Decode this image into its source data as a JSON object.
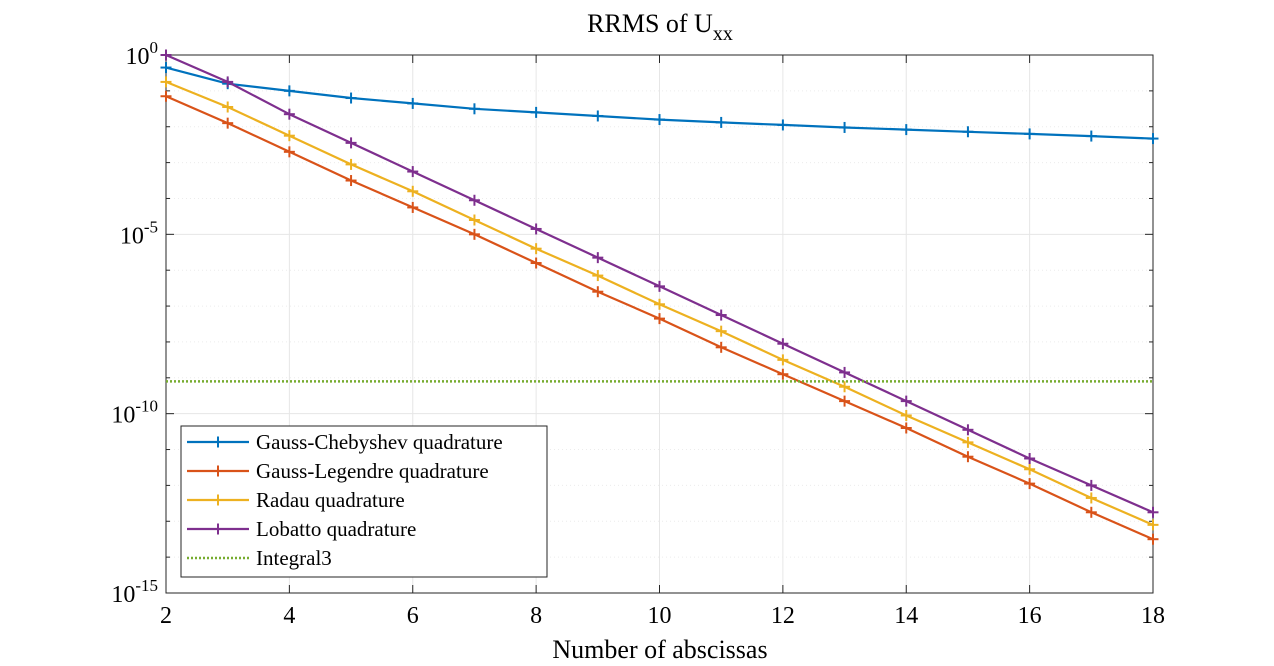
{
  "chart_data": {
    "type": "line",
    "title": "RRMS of U",
    "title_subscript": "xx",
    "xlabel": "Number of abscissas",
    "ylabel": "",
    "yscale": "log",
    "xlim": [
      2,
      18
    ],
    "ylim_exponent": [
      -15,
      0
    ],
    "x_ticks": [
      2,
      4,
      6,
      8,
      10,
      12,
      14,
      16,
      18
    ],
    "x_tick_labels": [
      "2",
      "4",
      "6",
      "8",
      "10",
      "12",
      "14",
      "16",
      "18"
    ],
    "y_ticks_exponent": [
      0,
      -5,
      -10,
      -15
    ],
    "y_tick_base": "10",
    "y_tick_exponent_labels": [
      "0",
      "-5",
      "-10",
      "-15"
    ],
    "grid": true,
    "legend_position": "bottom-left",
    "x": [
      2,
      3,
      4,
      5,
      6,
      7,
      8,
      9,
      10,
      11,
      12,
      13,
      14,
      15,
      16,
      17,
      18
    ],
    "series": [
      {
        "name": "Gauss-Chebyshev quadrature",
        "color": "#0072BD",
        "style": "solid-plus",
        "log10_values": [
          -0.35,
          -0.8,
          -1.0,
          -1.2,
          -1.35,
          -1.5,
          -1.6,
          -1.7,
          -1.8,
          -1.88,
          -1.95,
          -2.02,
          -2.08,
          -2.14,
          -2.2,
          -2.26,
          -2.33
        ]
      },
      {
        "name": "Gauss-Legendre quadrature",
        "color": "#D95319",
        "style": "solid-plus",
        "log10_values": [
          -1.15,
          -1.9,
          -2.7,
          -3.5,
          -4.25,
          -5.0,
          -5.8,
          -6.6,
          -7.35,
          -8.15,
          -8.9,
          -9.65,
          -10.4,
          -11.2,
          -11.95,
          -12.75,
          -13.5
        ]
      },
      {
        "name": "Radau quadrature",
        "color": "#EDB120",
        "style": "solid-plus",
        "log10_values": [
          -0.75,
          -1.45,
          -2.25,
          -3.05,
          -3.8,
          -4.6,
          -5.4,
          -6.15,
          -6.95,
          -7.7,
          -8.5,
          -9.25,
          -10.05,
          -10.8,
          -11.55,
          -12.35,
          -13.1
        ]
      },
      {
        "name": "Lobatto quadrature",
        "color": "#7E2F8E",
        "style": "solid-plus",
        "log10_values": [
          0.0,
          -0.75,
          -1.65,
          -2.45,
          -3.25,
          -4.05,
          -4.85,
          -5.65,
          -6.45,
          -7.25,
          -8.05,
          -8.85,
          -9.65,
          -10.45,
          -11.25,
          -12.0,
          -12.75
        ]
      },
      {
        "name": "Integral3",
        "color": "#77AC30",
        "style": "dotted",
        "log10_values": [
          -9.1,
          -9.1
        ]
      }
    ]
  }
}
